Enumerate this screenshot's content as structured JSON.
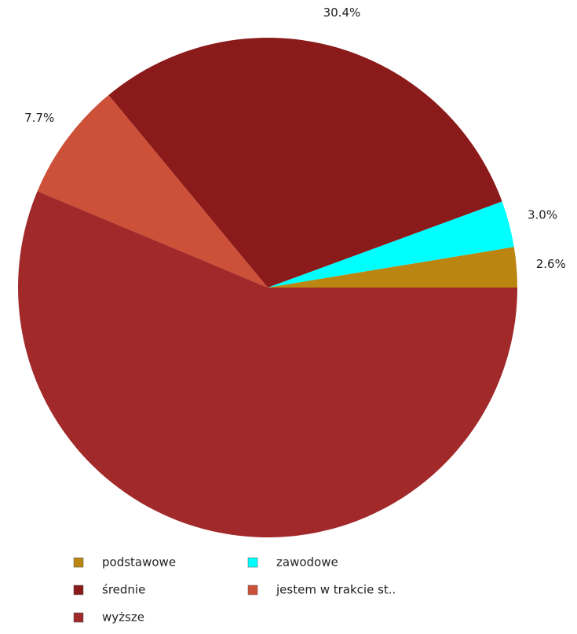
{
  "chart_data": {
    "type": "pie",
    "categories": [
      "podstawowe",
      "zawodowe",
      "średnie",
      "jestem w trakcie st..",
      "wyższe"
    ],
    "values": [
      2.6,
      3.0,
      30.4,
      7.7,
      56.3
    ],
    "value_labels": [
      "2.6%",
      "3.0%",
      "30.4%",
      "7.7%",
      null
    ],
    "colors": [
      "#bb8511",
      "#00ffff",
      "#8b1a1a",
      "#cd5038",
      "#a2292a"
    ]
  }
}
